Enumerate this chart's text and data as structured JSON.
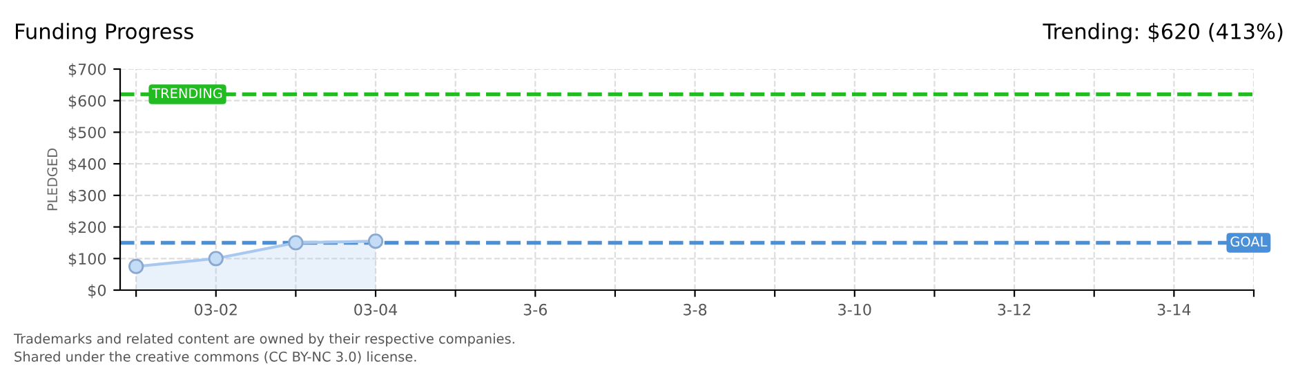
{
  "chart_data": {
    "type": "area",
    "title": "Funding Progress",
    "subtitle": "Trending: $620 (413%)",
    "ylabel": "PLEDGED",
    "categories": [
      null,
      "03-02",
      null,
      "03-04",
      null,
      "3-6",
      null,
      "3-8",
      null,
      "3-10",
      null,
      "3-12",
      null,
      "3-14",
      null
    ],
    "series": [
      {
        "color": "#a8c8f0",
        "values": [
          75,
          100,
          150,
          155,
          null,
          null,
          null,
          null,
          null,
          null,
          null,
          null,
          null,
          null,
          null
        ]
      }
    ],
    "ylim": [
      0,
      700
    ],
    "yticks": [
      {
        "value": 0,
        "label": "$0"
      },
      {
        "value": 100,
        "label": "$100"
      },
      {
        "value": 200,
        "label": "$200"
      },
      {
        "value": 300,
        "label": "$300"
      },
      {
        "value": 400,
        "label": "$400"
      },
      {
        "value": 500,
        "label": "$500"
      },
      {
        "value": 600,
        "label": "$600"
      },
      {
        "value": 700,
        "label": "$700"
      }
    ],
    "ref_lines": [
      {
        "axis": "y",
        "value": 620,
        "label": "TRENDING",
        "color": "#22bb22",
        "line_style": "dashed"
      },
      {
        "axis": "y",
        "value": 150,
        "label": "GOAL",
        "color": "#4a90d9",
        "line_style": "dashed"
      }
    ],
    "grid": true,
    "marker": "circle",
    "legend": false,
    "annotations": [
      "Trademarks and related content are owned by their respective companies.",
      "Shared under the creative commons (CC BY-NC 3.0) license."
    ]
  }
}
